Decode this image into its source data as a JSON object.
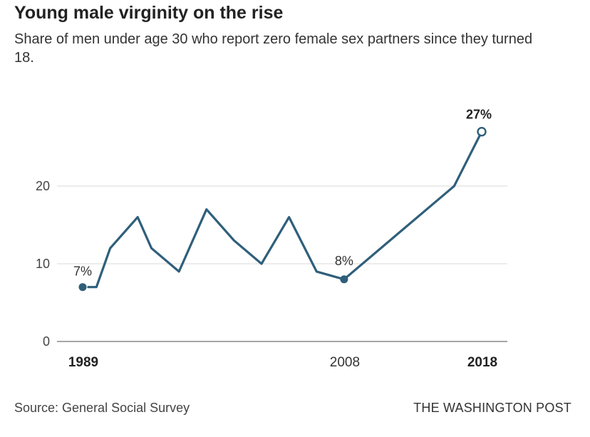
{
  "header": {
    "title": "Young male virginity on the rise",
    "subtitle": "Share of men under age 30 who report zero female sex partners since they turned 18."
  },
  "footer": {
    "source": "Source: General Social Survey",
    "credit": "THE WASHINGTON POST"
  },
  "colors": {
    "line": "#2f5f7a",
    "grid": "#d9d9d9",
    "baseline": "#888888"
  },
  "chart_data": {
    "type": "line",
    "title": "Young male virginity on the rise",
    "subtitle": "Share of men under age 30 who report zero female sex partners since they turned 18.",
    "xlabel": "",
    "ylabel": "",
    "ylim": [
      0,
      27
    ],
    "xlim": [
      1989,
      2018
    ],
    "grid": true,
    "y_ticks": [
      {
        "value": 0,
        "label": "0"
      },
      {
        "value": 10,
        "label": "10"
      },
      {
        "value": 20,
        "label": "20"
      }
    ],
    "x_ticks": [
      {
        "value": 1989,
        "label": "1989",
        "bold": true
      },
      {
        "value": 2008,
        "label": "2008",
        "bold": false
      },
      {
        "value": 2018,
        "label": "2018",
        "bold": true
      }
    ],
    "x": [
      1989,
      1990,
      1991,
      1993,
      1994,
      1996,
      1998,
      2000,
      2002,
      2004,
      2006,
      2008,
      2010,
      2012,
      2014,
      2016,
      2018
    ],
    "values": [
      7,
      7,
      12,
      16,
      12,
      9,
      17,
      13,
      10,
      16,
      9,
      8,
      11,
      14,
      17,
      20,
      27
    ],
    "annotations": [
      {
        "x": 1989,
        "y": 7,
        "label": "7%",
        "bold": false,
        "marker": "filled"
      },
      {
        "x": 2008,
        "y": 8,
        "label": "8%",
        "bold": false,
        "marker": "filled"
      },
      {
        "x": 2018,
        "y": 27,
        "label": "27%",
        "bold": true,
        "marker": "open"
      }
    ]
  }
}
